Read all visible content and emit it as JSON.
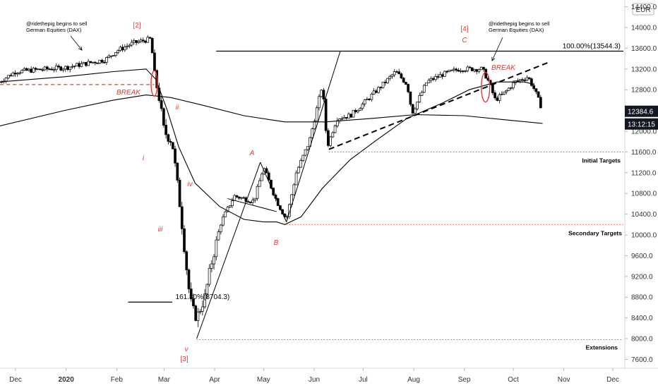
{
  "chart_data": {
    "type": "candlestick",
    "instrument_note": "@ridethepig begins to sell German Equities (DAX)",
    "currency": "EUR",
    "current_price": "12384.6",
    "countdown": "13:12:15",
    "ylim": [
      7400,
      14400
    ],
    "y_ticks": [
      "7600.0",
      "8000.0",
      "8400.0",
      "8800.0",
      "9200.0",
      "9600.0",
      "10000.0",
      "10400.0",
      "10800.0",
      "11200.0",
      "11600.0",
      "12000.0",
      "12400.0",
      "12800.0",
      "13200.0",
      "13600.0",
      "14000.0",
      "14400.0"
    ],
    "x_ticks": [
      {
        "label": "Dec",
        "day": 0
      },
      {
        "label": "2020",
        "day": 31,
        "bold": true
      },
      {
        "label": "Feb",
        "day": 62
      },
      {
        "label": "Mar",
        "day": 91
      },
      {
        "label": "Apr",
        "day": 122
      },
      {
        "label": "May",
        "day": 152
      },
      {
        "label": "Jun",
        "day": 183
      },
      {
        "label": "Jul",
        "day": 213
      },
      {
        "label": "Aug",
        "day": 244
      },
      {
        "label": "Sep",
        "day": 275
      },
      {
        "label": "Oct",
        "day": 305
      },
      {
        "label": "Nov",
        "day": 336
      },
      {
        "label": "Dec",
        "day": 366
      }
    ],
    "price_path": [
      [
        -10,
        12950
      ],
      [
        0,
        13150
      ],
      [
        31,
        13230
      ],
      [
        55,
        13380
      ],
      [
        62,
        13550
      ],
      [
        72,
        13700
      ],
      [
        83,
        13780
      ],
      [
        85,
        13100
      ],
      [
        88,
        12650
      ],
      [
        91,
        12000
      ],
      [
        96,
        11800
      ],
      [
        101,
        10500
      ],
      [
        106,
        9000
      ],
      [
        108,
        8600
      ],
      [
        111,
        8400
      ],
      [
        116,
        8800
      ],
      [
        120,
        9450
      ],
      [
        126,
        10250
      ],
      [
        134,
        10750
      ],
      [
        146,
        10650
      ],
      [
        152,
        11300
      ],
      [
        160,
        10650
      ],
      [
        166,
        10300
      ],
      [
        172,
        11200
      ],
      [
        180,
        11800
      ],
      [
        188,
        12900
      ],
      [
        191,
        11700
      ],
      [
        197,
        12250
      ],
      [
        205,
        12300
      ],
      [
        212,
        12500
      ],
      [
        225,
        12900
      ],
      [
        233,
        13150
      ],
      [
        240,
        12900
      ],
      [
        243,
        12350
      ],
      [
        252,
        12950
      ],
      [
        262,
        13100
      ],
      [
        272,
        13200
      ],
      [
        286,
        13200
      ],
      [
        290,
        12950
      ],
      [
        294,
        12600
      ],
      [
        300,
        12750
      ],
      [
        306,
        12950
      ],
      [
        314,
        13050
      ],
      [
        318,
        12800
      ],
      [
        323,
        12400
      ]
    ],
    "ma_short": [
      [
        -10,
        12950
      ],
      [
        30,
        13050
      ],
      [
        60,
        13150
      ],
      [
        80,
        13200
      ],
      [
        86,
        13000
      ],
      [
        93,
        12400
      ],
      [
        100,
        11700
      ],
      [
        110,
        11000
      ],
      [
        125,
        10550
      ],
      [
        140,
        10300
      ],
      [
        152,
        10250
      ],
      [
        160,
        10250
      ],
      [
        165,
        10200
      ],
      [
        175,
        10350
      ],
      [
        188,
        10900
      ],
      [
        205,
        11450
      ],
      [
        220,
        11800
      ],
      [
        240,
        12250
      ],
      [
        262,
        12550
      ],
      [
        278,
        12800
      ],
      [
        295,
        12950
      ],
      [
        312,
        12950
      ],
      [
        318,
        12900
      ]
    ],
    "ma_long": [
      [
        -10,
        12100
      ],
      [
        30,
        12400
      ],
      [
        60,
        12600
      ],
      [
        80,
        12700
      ],
      [
        95,
        12650
      ],
      [
        115,
        12500
      ],
      [
        140,
        12300
      ],
      [
        165,
        12180
      ],
      [
        190,
        12180
      ],
      [
        220,
        12250
      ],
      [
        245,
        12320
      ],
      [
        275,
        12300
      ],
      [
        300,
        12220
      ],
      [
        323,
        12150
      ]
    ],
    "annotations": {
      "note_left": [
        "@ridethepig begins to sell",
        "German Equities (DAX)"
      ],
      "note_right": [
        "@ridethepig begins to sell",
        "German Equities (DAX)"
      ],
      "wave_2": "[2]",
      "wave_3": "[3]",
      "wave_4": "[4]",
      "wave_i": "i",
      "wave_ii": "ii",
      "wave_iii": "iii",
      "wave_iv": "iv",
      "wave_v": "v",
      "wave_A": "A",
      "wave_B": "B",
      "wave_C": "C",
      "break_left": "BREAK",
      "break_right": "BREAK",
      "fib_1618": "161.80%(8704.3)",
      "fib_100": "100.00%(13544.3)",
      "initial_targets": "Initial Targets",
      "secondary_targets": "Secondary Targets",
      "extensions": "Extensions"
    },
    "levels": {
      "fib_100": 13544.3,
      "fib_1618": 8704.3,
      "initial_targets": 11600,
      "secondary_targets": 10200,
      "extensions": 7980,
      "break_left": 12900
    },
    "colors": {
      "accent_red": "#e53935",
      "line": "#000000",
      "price_tag_bg": "#131722"
    }
  }
}
